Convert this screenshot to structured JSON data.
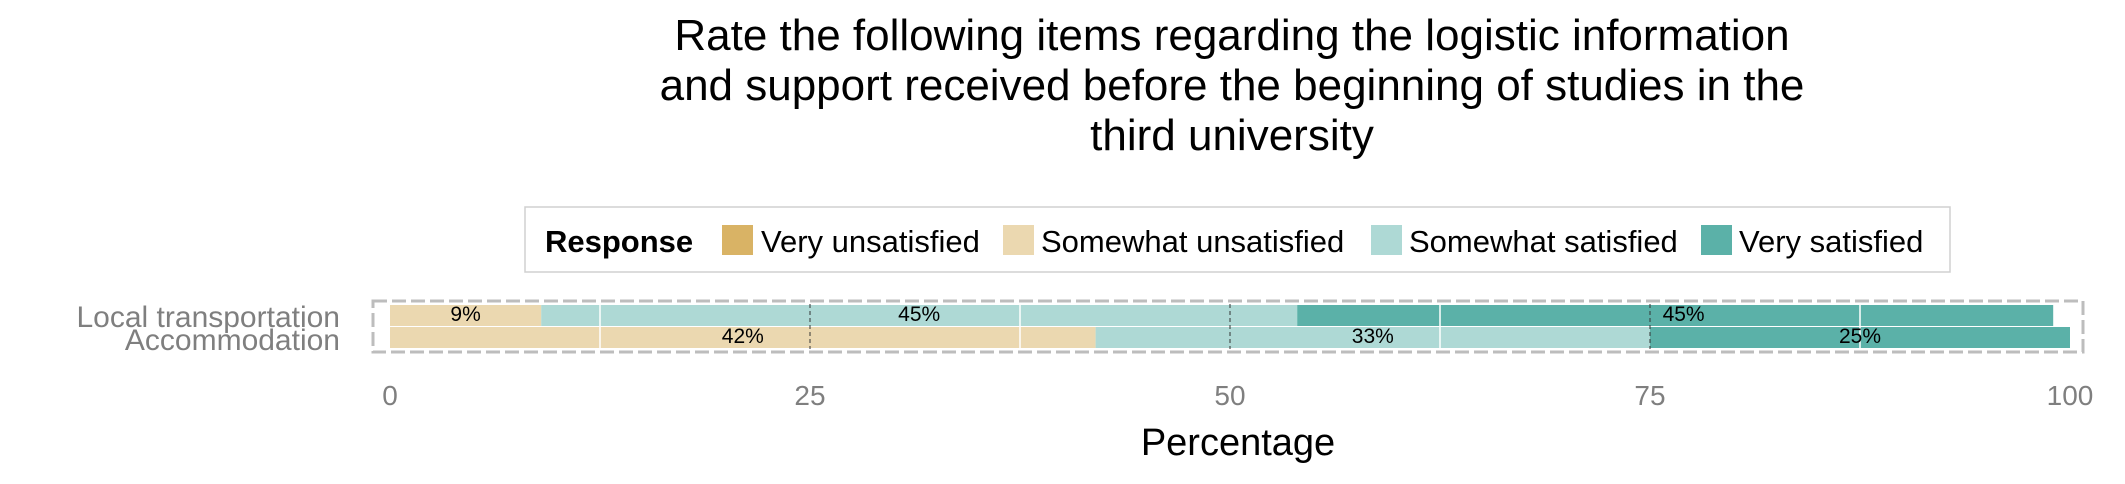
{
  "chart_data": {
    "type": "bar",
    "orientation": "horizontal",
    "stacked": true,
    "title_lines": [
      "Rate the following items regarding the logistic information",
      "and support received before the beginning of studies in the",
      "third university"
    ],
    "xlabel": "Percentage",
    "xlim": [
      0,
      100
    ],
    "x_ticks": [
      "0",
      "25",
      "50",
      "75",
      "100"
    ],
    "categories": [
      "Local transportation",
      "Accommodation"
    ],
    "legend": {
      "title": "Response",
      "position": "top",
      "items": [
        "Very unsatisfied",
        "Somewhat unsatisfied",
        "Somewhat satisfied",
        "Very satisfied"
      ]
    },
    "series": [
      {
        "name": "Very unsatisfied",
        "color": "#D9B365",
        "values": [
          0,
          0
        ]
      },
      {
        "name": "Somewhat unsatisfied",
        "color": "#EBD8B0",
        "values": [
          9,
          42
        ]
      },
      {
        "name": "Somewhat satisfied",
        "color": "#AED9D5",
        "values": [
          45,
          33
        ]
      },
      {
        "name": "Very satisfied",
        "color": "#5BB1A8",
        "values": [
          45,
          25
        ]
      }
    ],
    "data_labels": [
      {
        "category": "Local transportation",
        "texts": [
          "9%",
          "45%",
          "45%"
        ],
        "positions": [
          4.5,
          31.5,
          77
        ]
      },
      {
        "category": "Accommodation",
        "texts": [
          "42%",
          "33%",
          "25%"
        ],
        "positions": [
          21,
          58.5,
          87.5
        ]
      }
    ],
    "grid": true
  }
}
